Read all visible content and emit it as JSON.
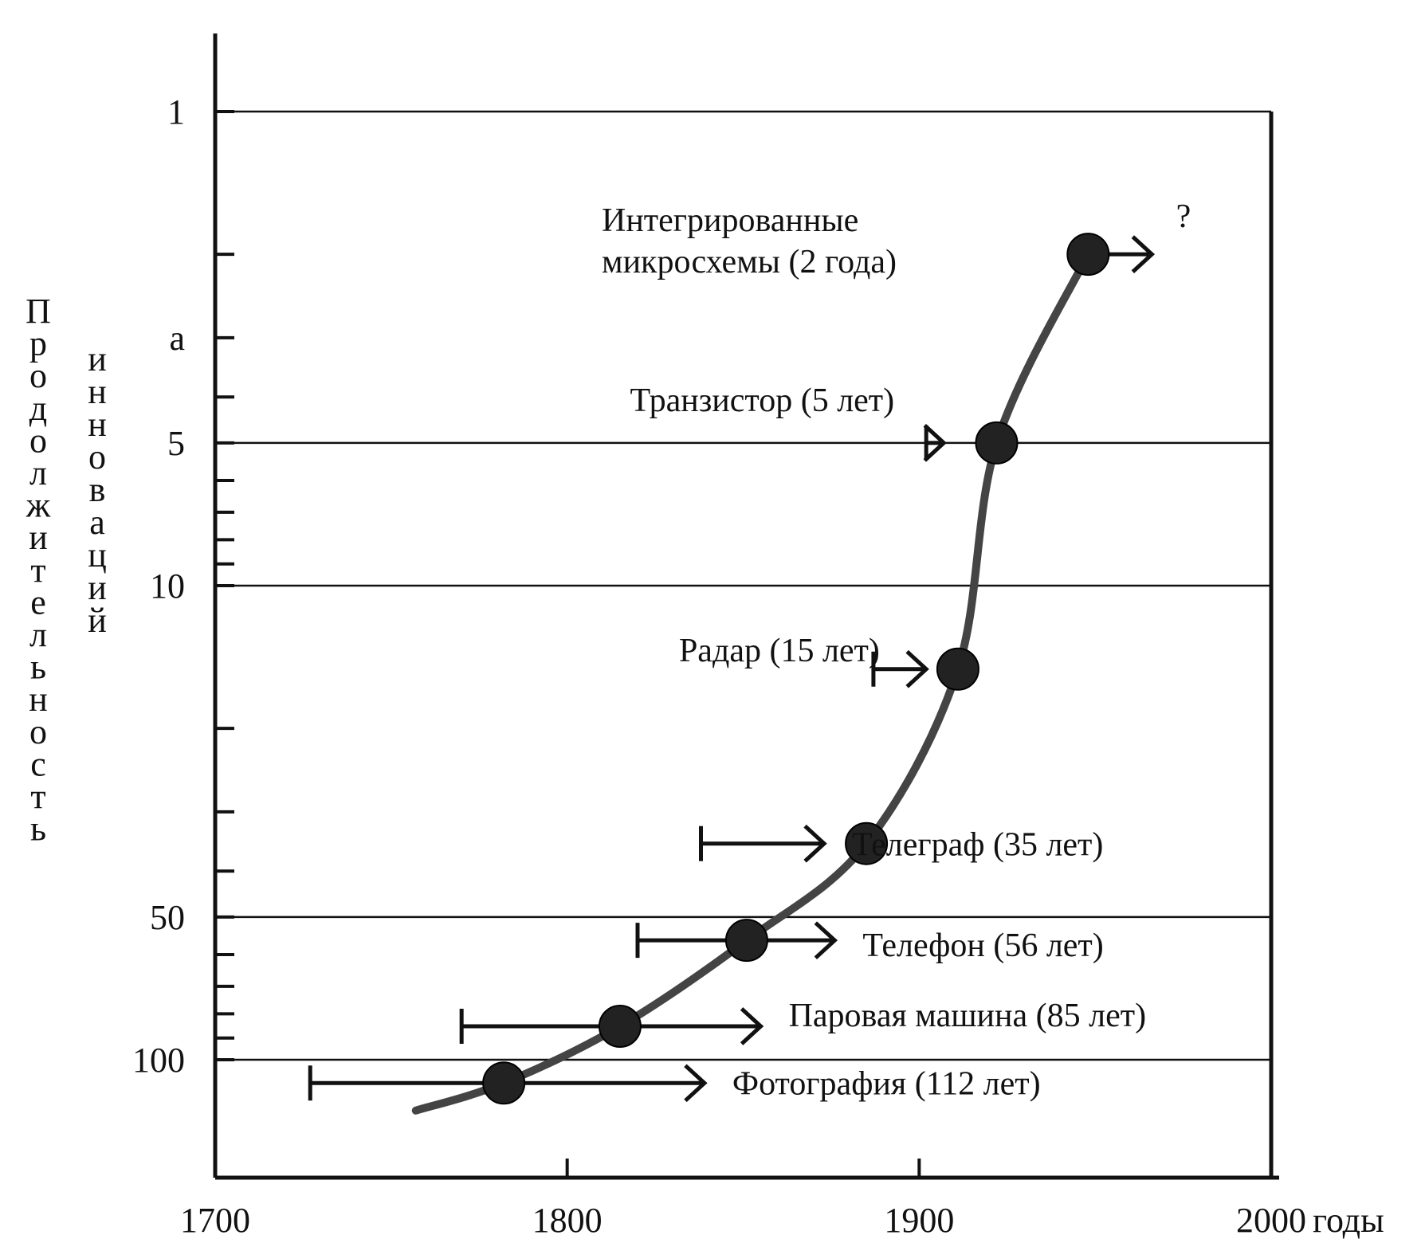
{
  "chart_data": {
    "type": "line",
    "xlabel": "годы",
    "ylabel": [
      "Продолжительность",
      "инноваций"
    ],
    "x_ticks": [
      1700,
      1800,
      1900,
      2000
    ],
    "y_ticks": [
      "1",
      "a",
      "5",
      "10",
      "50",
      "100"
    ],
    "y_reversed": true,
    "y_scale": "log",
    "grid_y": [
      5,
      10,
      50,
      100
    ],
    "annotation": "?",
    "events": [
      {
        "label": "Фотография (112 лет)",
        "start": 1727,
        "end": 1839,
        "year": 1782,
        "duration": 112
      },
      {
        "label": "Паровая машина (85 лет)",
        "start": 1770,
        "end": 1855,
        "year": 1815,
        "duration": 85
      },
      {
        "label": "Телефон (56 лет)",
        "start": 1820,
        "end": 1876,
        "year": 1851,
        "duration": 56
      },
      {
        "label": "Телеграф (35 лет)",
        "start": 1838,
        "end": 1873,
        "year": 1885,
        "duration": 35
      },
      {
        "label": "Радар (15 лет)",
        "start": 1887,
        "end": 1902,
        "year": 1911,
        "duration": 15
      },
      {
        "label": "Транзистор (5 лет)",
        "start": 1902,
        "end": 1907,
        "year": 1922,
        "duration": 5
      },
      {
        "label": "Интегрированные микросхемы (2 года)",
        "start": 1958,
        "end": 1960,
        "year": 1948,
        "duration": 2
      }
    ]
  }
}
